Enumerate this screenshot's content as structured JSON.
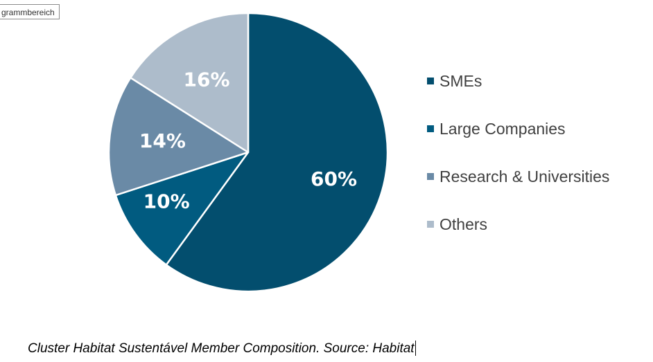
{
  "chart_area_tag": "grammbereich",
  "chart_data": {
    "type": "pie",
    "title": "",
    "categories": [
      "SMEs",
      "Large Companies",
      "Research & Universities",
      "Others"
    ],
    "values": [
      60,
      10,
      14,
      16
    ],
    "labels": [
      "60%",
      "10%",
      "14%",
      "16%"
    ],
    "colors": [
      "#034e6e",
      "#015b80",
      "#6a8aa6",
      "#adbccb"
    ],
    "start_angle": "12 o'clock",
    "direction": "clockwise",
    "legend_position": "right"
  },
  "caption": "Cluster Habitat Sustentável Member Composition. Source: Habitat"
}
